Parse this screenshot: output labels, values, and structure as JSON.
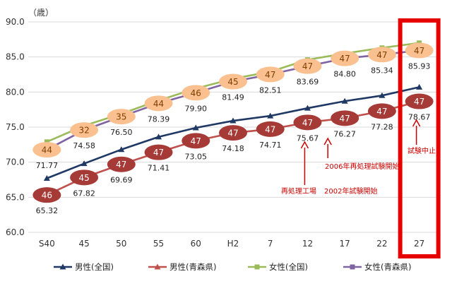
{
  "chart_data": {
    "type": "line",
    "ylabel": "（歳）",
    "ylim": [
      60,
      90
    ],
    "yticks": [
      "60.0",
      "65.0",
      "70.0",
      "75.0",
      "80.0",
      "85.0",
      "90.0"
    ],
    "categories": [
      "S40",
      "45",
      "50",
      "55",
      "60",
      "H2",
      "7",
      "12",
      "17",
      "22",
      "27"
    ],
    "grid": true,
    "legend_position": "bottom",
    "series": [
      {
        "name": "男性(全国)",
        "color": "#1f3864",
        "marker": "triangle",
        "values": [
          67.7,
          69.8,
          71.8,
          73.6,
          74.9,
          75.9,
          76.6,
          77.7,
          78.7,
          79.5,
          80.7
        ]
      },
      {
        "name": "男性(青森県)",
        "color": "#c0504d",
        "marker": "triangle",
        "values": [
          65.32,
          67.82,
          69.69,
          71.41,
          73.05,
          74.18,
          74.71,
          75.67,
          76.27,
          77.28,
          78.67
        ],
        "value_labels": [
          "65.32",
          "67.82",
          "69.69",
          "71.41",
          "73.05",
          "74.18",
          "74.71",
          "75.67",
          "76.27",
          "77.28",
          "78.67"
        ],
        "rank_labels": [
          "46",
          "45",
          "47",
          "47",
          "47",
          "47",
          "47",
          "47",
          "47",
          "47",
          "47"
        ]
      },
      {
        "name": "女性(全国)",
        "color": "#9bbb59",
        "marker": "square",
        "values": [
          72.9,
          75.2,
          76.9,
          78.8,
          80.5,
          81.9,
          82.9,
          84.6,
          85.5,
          86.3,
          87.0
        ]
      },
      {
        "name": "女性(青森県)",
        "color": "#8064a2",
        "marker": "square",
        "values": [
          71.77,
          74.58,
          76.5,
          78.39,
          79.9,
          81.49,
          82.51,
          83.69,
          84.8,
          85.34,
          85.93
        ],
        "value_labels": [
          "71.77",
          "74.58",
          "76.50",
          "78.39",
          "79.90",
          "81.49",
          "82.51",
          "83.69",
          "84.80",
          "85.34",
          "85.93"
        ],
        "rank_labels": [
          "44",
          "32",
          "35",
          "44",
          "46",
          "45",
          "47",
          "47",
          "47",
          "47",
          "47"
        ]
      }
    ],
    "annotations": [
      {
        "text": "再処理工場",
        "category_index": 7
      },
      {
        "text": "2002年試験開始",
        "category_index": 7
      },
      {
        "text": "2006年再処理試験開始",
        "category_index": 8
      },
      {
        "text": "試験中止",
        "category_index": 10
      }
    ],
    "highlight_category_index": 10,
    "highlight_color": "#e60000"
  }
}
